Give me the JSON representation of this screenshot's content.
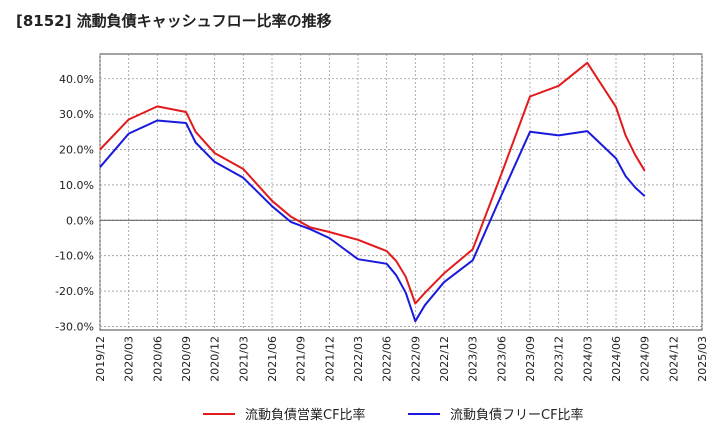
{
  "chart_data": {
    "type": "line",
    "title": "[8152]  流動負債キャッシュフロー比率の推移",
    "x_ticks": [
      "2019/12",
      "2020/03",
      "2020/06",
      "2020/09",
      "2020/12",
      "2021/03",
      "2021/06",
      "2021/09",
      "2021/12",
      "2022/03",
      "2022/06",
      "2022/09",
      "2022/12",
      "2023/03",
      "2023/06",
      "2023/09",
      "2023/12",
      "2024/03",
      "2024/06",
      "2024/09",
      "2024/12",
      "2025/03"
    ],
    "y_ticks": [
      "-30.0%",
      "-20.0%",
      "-10.0%",
      "0.0%",
      "10.0%",
      "20.0%",
      "30.0%",
      "40.0%"
    ],
    "ylim": [
      -31,
      47
    ],
    "xlim": [
      "2019/12",
      "2025/03"
    ],
    "grid": true,
    "legend_position": "bottom",
    "series": [
      {
        "name": "流動負債営業CF比率",
        "color": "#e31a1c",
        "points": [
          [
            "2019/12",
            20.0
          ],
          [
            "2020/03",
            28.5
          ],
          [
            "2020/06",
            32.2
          ],
          [
            "2020/09",
            30.6
          ],
          [
            "2020/10",
            25.0
          ],
          [
            "2020/12",
            19.0
          ],
          [
            "2021/03",
            14.5
          ],
          [
            "2021/06",
            5.5
          ],
          [
            "2021/08",
            1.0
          ],
          [
            "2021/10",
            -2.0
          ],
          [
            "2021/12",
            -3.3
          ],
          [
            "2022/03",
            -5.5
          ],
          [
            "2022/06",
            -8.7
          ],
          [
            "2022/07",
            -11.5
          ],
          [
            "2022/08",
            -16.0
          ],
          [
            "2022/09",
            -23.5
          ],
          [
            "2022/10",
            -20.5
          ],
          [
            "2022/12",
            -15.0
          ],
          [
            "2023/03",
            -8.2
          ],
          [
            "2023/06",
            13.0
          ],
          [
            "2023/09",
            35.0
          ],
          [
            "2023/12",
            38.0
          ],
          [
            "2024/03",
            44.5
          ],
          [
            "2024/06",
            32.0
          ],
          [
            "2024/07",
            24.0
          ],
          [
            "2024/08",
            18.5
          ],
          [
            "2024/09",
            14.0
          ]
        ]
      },
      {
        "name": "流動負債フリーCF比率",
        "color": "#1a1adc",
        "points": [
          [
            "2019/12",
            15.0
          ],
          [
            "2020/03",
            24.5
          ],
          [
            "2020/06",
            28.2
          ],
          [
            "2020/09",
            27.5
          ],
          [
            "2020/10",
            22.0
          ],
          [
            "2020/12",
            16.5
          ],
          [
            "2021/03",
            12.0
          ],
          [
            "2021/06",
            4.0
          ],
          [
            "2021/08",
            -0.5
          ],
          [
            "2021/10",
            -2.5
          ],
          [
            "2021/12",
            -5.0
          ],
          [
            "2022/03",
            -11.0
          ],
          [
            "2022/06",
            -12.3
          ],
          [
            "2022/07",
            -15.5
          ],
          [
            "2022/08",
            -20.5
          ],
          [
            "2022/09",
            -28.5
          ],
          [
            "2022/10",
            -24.0
          ],
          [
            "2022/12",
            -17.5
          ],
          [
            "2023/03",
            -11.3
          ],
          [
            "2023/06",
            7.0
          ],
          [
            "2023/09",
            25.0
          ],
          [
            "2023/12",
            24.0
          ],
          [
            "2024/03",
            25.2
          ],
          [
            "2024/06",
            17.5
          ],
          [
            "2024/07",
            12.5
          ],
          [
            "2024/08",
            9.3
          ],
          [
            "2024/09",
            6.8
          ]
        ]
      }
    ]
  }
}
